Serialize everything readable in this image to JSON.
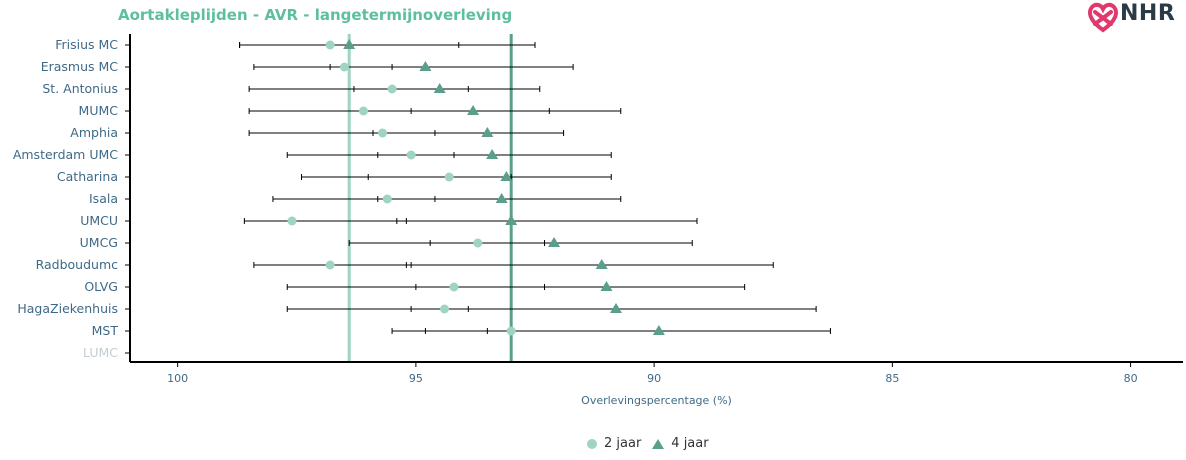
{
  "title": "Aortakleplijden - AVR - langetermijnoverleving",
  "logo_text": "NHR",
  "colors": {
    "title": "#5cbf9f",
    "label": "#3f6a87",
    "label_muted": "#c4cdd3",
    "series_2y": "#9fd4c4",
    "series_4y": "#5a9e8c",
    "refline_2y": "#9fd4c4",
    "refline_4y": "#5a9e8c",
    "axis": "#000000",
    "tick_text": "#3f6a87"
  },
  "chart_data": {
    "type": "scatter",
    "title": "Aortakleplijden - AVR - langetermijnoverleving",
    "xlabel": "Overlevingspercentage (%)",
    "ylabel": "",
    "xlim": [
      101,
      78.9
    ],
    "xticks": [
      100,
      95,
      90,
      85,
      80
    ],
    "reversed_x": true,
    "grid": false,
    "legend_position": "bottom",
    "categories": [
      "Frisius MC",
      "Erasmus MC",
      "St. Antonius",
      "MUMC",
      "Amphia",
      "Amsterdam UMC",
      "Catharina",
      "Isala",
      "UMCU",
      "UMCG",
      "Radboudumc",
      "OLVG",
      "HagaZiekenhuis",
      "MST",
      "LUMC"
    ],
    "muted_categories": [
      "LUMC"
    ],
    "reference_lines": [
      {
        "series": "2 jaar",
        "x": 96.4
      },
      {
        "series": "4 jaar",
        "x": 93.0
      }
    ],
    "series": [
      {
        "name": "2 jaar",
        "marker": "circle",
        "values": [
          96.8,
          96.5,
          95.5,
          96.1,
          95.7,
          95.1,
          94.3,
          95.6,
          97.6,
          93.7,
          96.8,
          94.2,
          94.4,
          93.0,
          null
        ],
        "lower": [
          94.1,
          95.5,
          93.9,
          92.2,
          94.6,
          94.2,
          93.0,
          94.6,
          95.2,
          92.3,
          95.1,
          92.3,
          93.9,
          93.5,
          null
        ],
        "upper": [
          98.7,
          98.4,
          98.5,
          98.5,
          98.5,
          97.7,
          97.4,
          98.0,
          98.6,
          96.4,
          98.4,
          97.7,
          97.7,
          95.5,
          null
        ]
      },
      {
        "name": "4 jaar",
        "marker": "triangle",
        "values": [
          96.4,
          94.8,
          94.5,
          93.8,
          93.5,
          93.4,
          93.1,
          93.2,
          93.0,
          92.1,
          91.1,
          91.0,
          90.8,
          89.9,
          null
        ],
        "lower": [
          92.5,
          91.7,
          92.4,
          90.7,
          91.9,
          90.9,
          90.9,
          90.7,
          89.1,
          89.2,
          87.5,
          88.1,
          86.6,
          86.3,
          null
        ],
        "upper": [
          98.7,
          96.8,
          96.3,
          95.1,
          95.9,
          95.8,
          96.0,
          95.8,
          95.4,
          94.7,
          95.2,
          95.0,
          95.1,
          94.8,
          null
        ]
      }
    ]
  }
}
